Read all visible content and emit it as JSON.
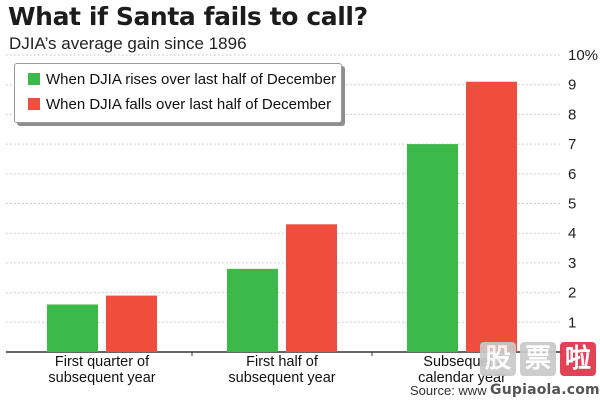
{
  "header": {
    "title": "What if Santa fails to call?",
    "subtitle": "DJIA’s average gain since 1896"
  },
  "colors": {
    "rises": "#3db84a",
    "falls": "#f14d3e",
    "gridline": "#bfbfbf",
    "axis": "#333333"
  },
  "chart_data": {
    "type": "bar",
    "categories": [
      [
        "First quarter of",
        "subsequent year"
      ],
      [
        "First half of",
        "subsequent year"
      ],
      [
        "Subsequent",
        "calendar year"
      ]
    ],
    "series": [
      {
        "name": "When DJIA rises over last half of December",
        "values": [
          1.6,
          2.8,
          7.0
        ]
      },
      {
        "name": "When DJIA falls over last half of December",
        "values": [
          1.9,
          4.3,
          9.1
        ]
      }
    ],
    "ylim": [
      0,
      10
    ],
    "yticks": [
      "1",
      "2",
      "3",
      "4",
      "5",
      "6",
      "7",
      "8",
      "9",
      "10%"
    ],
    "grid": true,
    "gridStyle": "dotted",
    "legend": "top-left",
    "yaxis_side": "right"
  },
  "footer": {
    "source": "Source: www"
  },
  "watermark": {
    "chars": [
      "股",
      "票",
      "啦"
    ],
    "url": "Gupiaola.com"
  }
}
